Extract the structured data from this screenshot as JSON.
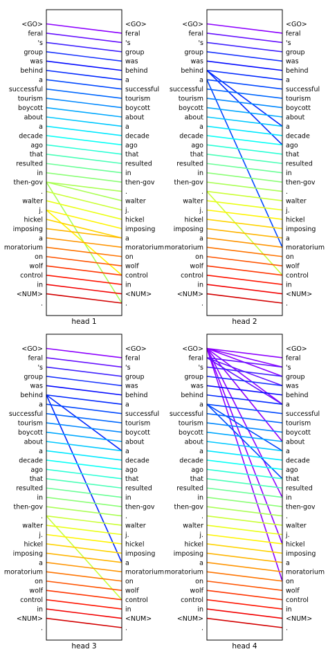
{
  "tokens": [
    "<GO>",
    "feral",
    "'s",
    "group",
    "was",
    "behind",
    "a",
    "successful",
    "tourism",
    "boycott",
    "about",
    "a",
    "decade",
    "ago",
    "that",
    "resulted",
    "in",
    "then-gov",
    ".",
    "walter",
    "j.",
    "hickel",
    "imposing",
    "a",
    "moratorium",
    "on",
    "wolf",
    "control",
    "in",
    "<NUM>",
    "."
  ],
  "chart_data": [
    {
      "type": "attention-alignment",
      "title": "head 1",
      "links": [
        [
          0,
          1
        ],
        [
          1,
          2
        ],
        [
          2,
          3
        ],
        [
          3,
          4
        ],
        [
          4,
          5
        ],
        [
          5,
          6
        ],
        [
          6,
          7
        ],
        [
          7,
          8
        ],
        [
          8,
          9
        ],
        [
          9,
          10
        ],
        [
          10,
          11
        ],
        [
          11,
          12
        ],
        [
          12,
          13
        ],
        [
          13,
          14
        ],
        [
          14,
          15
        ],
        [
          15,
          16
        ],
        [
          16,
          17
        ],
        [
          17,
          18
        ],
        [
          17,
          19
        ],
        [
          17,
          30
        ],
        [
          18,
          20
        ],
        [
          19,
          21
        ],
        [
          20,
          22
        ],
        [
          20,
          27
        ],
        [
          21,
          23
        ],
        [
          22,
          23
        ],
        [
          23,
          24
        ],
        [
          24,
          25
        ],
        [
          25,
          26
        ],
        [
          26,
          27
        ],
        [
          27,
          28
        ],
        [
          28,
          29
        ],
        [
          29,
          30
        ]
      ]
    },
    {
      "type": "attention-alignment",
      "title": "head 2",
      "links": [
        [
          0,
          1
        ],
        [
          1,
          2
        ],
        [
          2,
          3
        ],
        [
          3,
          4
        ],
        [
          4,
          5
        ],
        [
          5,
          6
        ],
        [
          5,
          11
        ],
        [
          5,
          13
        ],
        [
          6,
          7
        ],
        [
          6,
          24
        ],
        [
          7,
          8
        ],
        [
          8,
          9
        ],
        [
          9,
          10
        ],
        [
          10,
          11
        ],
        [
          11,
          12
        ],
        [
          12,
          13
        ],
        [
          13,
          14
        ],
        [
          14,
          15
        ],
        [
          15,
          16
        ],
        [
          16,
          17
        ],
        [
          17,
          18
        ],
        [
          18,
          19
        ],
        [
          18,
          27
        ],
        [
          19,
          20
        ],
        [
          20,
          21
        ],
        [
          21,
          22
        ],
        [
          22,
          23
        ],
        [
          23,
          24
        ],
        [
          24,
          25
        ],
        [
          25,
          26
        ],
        [
          26,
          27
        ],
        [
          27,
          28
        ],
        [
          28,
          29
        ],
        [
          29,
          30
        ]
      ]
    },
    {
      "type": "attention-alignment",
      "title": "head 3",
      "links": [
        [
          0,
          1
        ],
        [
          1,
          2
        ],
        [
          2,
          3
        ],
        [
          3,
          4
        ],
        [
          4,
          5
        ],
        [
          5,
          6
        ],
        [
          5,
          11
        ],
        [
          5,
          23
        ],
        [
          6,
          7
        ],
        [
          7,
          8
        ],
        [
          8,
          9
        ],
        [
          9,
          10
        ],
        [
          10,
          11
        ],
        [
          11,
          12
        ],
        [
          12,
          13
        ],
        [
          13,
          14
        ],
        [
          14,
          15
        ],
        [
          15,
          16
        ],
        [
          16,
          17
        ],
        [
          17,
          18
        ],
        [
          18,
          19
        ],
        [
          18,
          27
        ],
        [
          19,
          20
        ],
        [
          20,
          21
        ],
        [
          21,
          22
        ],
        [
          22,
          23
        ],
        [
          23,
          24
        ],
        [
          24,
          25
        ],
        [
          25,
          26
        ],
        [
          26,
          27
        ],
        [
          27,
          28
        ],
        [
          28,
          29
        ],
        [
          29,
          30
        ]
      ]
    },
    {
      "type": "attention-alignment",
      "title": "head 4",
      "links": [
        [
          0,
          1
        ],
        [
          0,
          2
        ],
        [
          0,
          3
        ],
        [
          0,
          6
        ],
        [
          0,
          10
        ],
        [
          0,
          16
        ],
        [
          0,
          21
        ],
        [
          0,
          25
        ],
        [
          1,
          2
        ],
        [
          1,
          4
        ],
        [
          1,
          6
        ],
        [
          2,
          3
        ],
        [
          3,
          4
        ],
        [
          4,
          5
        ],
        [
          5,
          6
        ],
        [
          6,
          7
        ],
        [
          6,
          11
        ],
        [
          6,
          14
        ],
        [
          7,
          8
        ],
        [
          8,
          9
        ],
        [
          9,
          10
        ],
        [
          10,
          11
        ],
        [
          11,
          12
        ],
        [
          12,
          13
        ],
        [
          13,
          14
        ],
        [
          14,
          15
        ],
        [
          15,
          16
        ],
        [
          16,
          17
        ],
        [
          17,
          18
        ],
        [
          18,
          19
        ],
        [
          19,
          20
        ],
        [
          20,
          21
        ],
        [
          21,
          22
        ],
        [
          22,
          23
        ],
        [
          23,
          24
        ],
        [
          24,
          25
        ],
        [
          25,
          26
        ],
        [
          26,
          27
        ],
        [
          27,
          28
        ],
        [
          28,
          29
        ],
        [
          29,
          30
        ]
      ]
    }
  ]
}
